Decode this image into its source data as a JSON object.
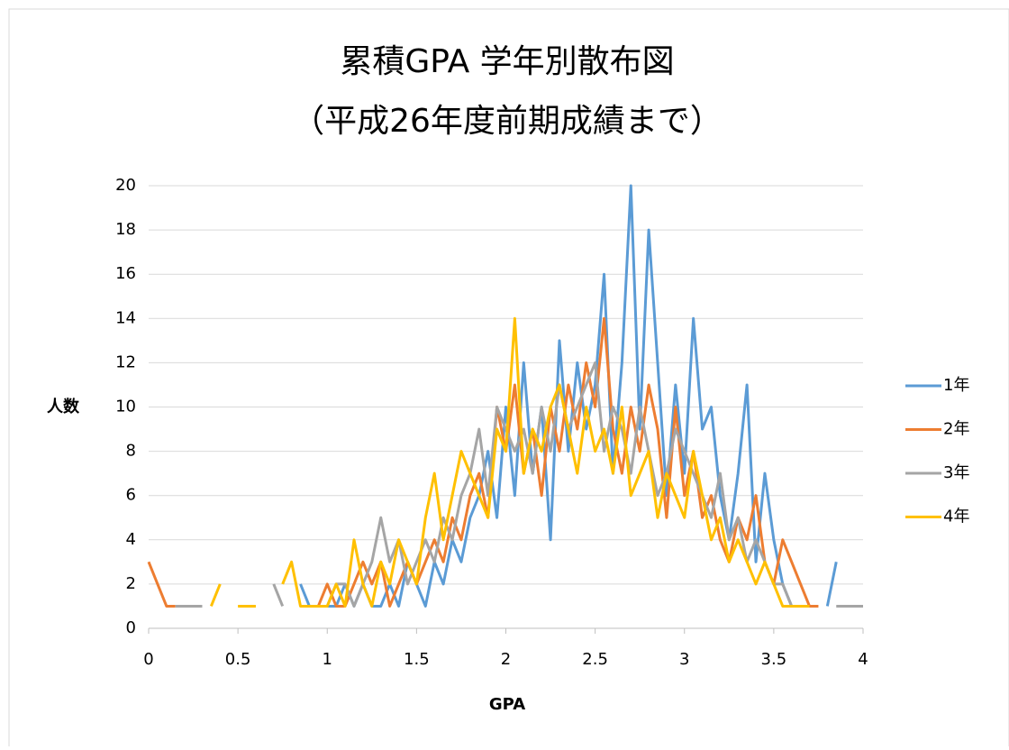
{
  "chart_data": {
    "type": "line",
    "title": "累積GPA 学年別散布図",
    "subtitle": "（平成26年度前期成績まで）",
    "x_label": "GPA",
    "y_label": "人数",
    "x": [
      0,
      0.05,
      0.1,
      0.15,
      0.2,
      0.25,
      0.3,
      0.35,
      0.4,
      0.45,
      0.5,
      0.55,
      0.6,
      0.65,
      0.7,
      0.75,
      0.8,
      0.85,
      0.9,
      0.95,
      1,
      1.05,
      1.1,
      1.15,
      1.2,
      1.25,
      1.3,
      1.35,
      1.4,
      1.45,
      1.5,
      1.55,
      1.6,
      1.65,
      1.7,
      1.75,
      1.8,
      1.85,
      1.9,
      1.95,
      2,
      2.05,
      2.1,
      2.15,
      2.2,
      2.25,
      2.3,
      2.35,
      2.4,
      2.45,
      2.5,
      2.55,
      2.6,
      2.65,
      2.7,
      2.75,
      2.8,
      2.85,
      2.9,
      2.95,
      3,
      3.05,
      3.1,
      3.15,
      3.2,
      3.25,
      3.3,
      3.35,
      3.4,
      3.45,
      3.5,
      3.55,
      3.6,
      3.65,
      3.7,
      3.75,
      3.8,
      3.85,
      3.9,
      3.95,
      4
    ],
    "series": [
      {
        "name": "1年",
        "color": "#5b9bd5",
        "values": [
          null,
          null,
          null,
          null,
          null,
          null,
          null,
          null,
          null,
          null,
          null,
          null,
          null,
          null,
          null,
          null,
          null,
          2,
          1,
          1,
          1,
          1,
          2,
          1,
          2,
          1,
          1,
          2,
          1,
          3,
          2,
          1,
          3,
          2,
          4,
          3,
          5,
          6,
          8,
          5,
          10,
          6,
          12,
          7,
          10,
          4,
          13,
          8,
          12,
          9,
          11,
          16,
          7,
          12,
          20,
          9,
          18,
          12,
          6,
          11,
          7,
          14,
          9,
          10,
          6,
          4,
          7,
          11,
          3,
          7,
          4,
          2,
          1,
          1,
          null,
          null,
          1,
          3,
          null,
          null,
          null
        ]
      },
      {
        "name": "2年",
        "color": "#ed7d31",
        "values": [
          3,
          2,
          1,
          1,
          null,
          null,
          null,
          null,
          null,
          null,
          null,
          null,
          null,
          null,
          null,
          null,
          null,
          1,
          1,
          1,
          2,
          1,
          1,
          2,
          3,
          2,
          3,
          1,
          2,
          3,
          2,
          3,
          4,
          3,
          5,
          4,
          6,
          7,
          5,
          10,
          8,
          11,
          7,
          9,
          6,
          10,
          8,
          11,
          9,
          12,
          10,
          14,
          9,
          7,
          10,
          8,
          11,
          9,
          5,
          10,
          6,
          8,
          5,
          6,
          4,
          3,
          5,
          4,
          6,
          3,
          2,
          4,
          3,
          2,
          1,
          1,
          null,
          null,
          null,
          null,
          null
        ]
      },
      {
        "name": "3年",
        "color": "#a5a5a5",
        "values": [
          null,
          null,
          null,
          1,
          1,
          1,
          1,
          null,
          null,
          null,
          null,
          null,
          null,
          null,
          2,
          1,
          null,
          null,
          1,
          1,
          1,
          2,
          2,
          1,
          2,
          3,
          5,
          3,
          4,
          2,
          3,
          4,
          3,
          5,
          4,
          6,
          7,
          9,
          6,
          10,
          9,
          8,
          9,
          7,
          10,
          8,
          11,
          9,
          10,
          11,
          12,
          8,
          10,
          9,
          7,
          10,
          8,
          6,
          7,
          9,
          8,
          7,
          6,
          5,
          7,
          4,
          5,
          3,
          4,
          3,
          2,
          2,
          1,
          1,
          1,
          null,
          null,
          1,
          1,
          1,
          1
        ]
      },
      {
        "name": "4年",
        "color": "#ffc000",
        "values": [
          null,
          null,
          null,
          null,
          null,
          null,
          null,
          1,
          2,
          null,
          1,
          1,
          1,
          null,
          null,
          2,
          3,
          1,
          1,
          1,
          1,
          2,
          1,
          4,
          2,
          1,
          3,
          2,
          4,
          3,
          2,
          5,
          7,
          4,
          6,
          8,
          7,
          6,
          5,
          9,
          8,
          14,
          7,
          9,
          8,
          10,
          11,
          9,
          7,
          10,
          8,
          9,
          7,
          10,
          6,
          7,
          8,
          5,
          7,
          6,
          5,
          8,
          6,
          4,
          5,
          3,
          4,
          3,
          2,
          3,
          2,
          1,
          1,
          1,
          1,
          null,
          null,
          null,
          null,
          null,
          null
        ]
      }
    ],
    "xlim": [
      0,
      4
    ],
    "xticks": [
      0,
      0.5,
      1,
      1.5,
      2,
      2.5,
      3,
      3.5,
      4
    ],
    "ylim": [
      0,
      20
    ],
    "yticks": [
      0,
      2,
      4,
      6,
      8,
      10,
      12,
      14,
      16,
      18,
      20
    ],
    "grid": true,
    "legend": "right"
  }
}
